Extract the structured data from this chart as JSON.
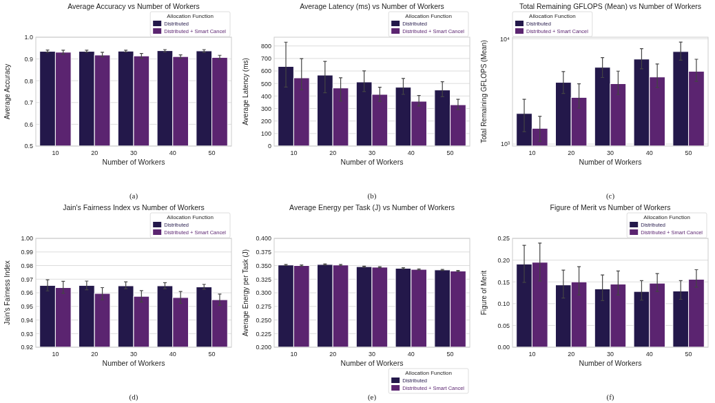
{
  "chart_data": [
    {
      "type": "bar",
      "title": "Average Accuracy vs Number of Workers",
      "xlabel": "Number of Workers",
      "ylabel": "Average Accuracy",
      "legend_title": "Allocation Function",
      "legend": "top right",
      "grid": "y",
      "annotations": [
        "(a)"
      ],
      "categories": [
        "10",
        "20",
        "30",
        "40",
        "50"
      ],
      "ylim": [
        0.5,
        1.0
      ],
      "yticks": [
        {
          "value": 0.5,
          "label": "0.5"
        },
        {
          "value": 0.6,
          "label": "0.6"
        },
        {
          "value": 0.7,
          "label": "0.7"
        },
        {
          "value": 0.8,
          "label": "0.8"
        },
        {
          "value": 0.9,
          "label": "0.9"
        },
        {
          "value": 1.0,
          "label": "1.0"
        }
      ],
      "series": [
        {
          "name": "Distributed",
          "color": "#23184a",
          "values": [
            0.935,
            0.935,
            0.936,
            0.938,
            0.937
          ],
          "errors": [
            [
              0.93,
              0.941
            ],
            [
              0.931,
              0.94
            ],
            [
              0.932,
              0.94
            ],
            [
              0.932,
              0.943
            ],
            [
              0.931,
              0.943
            ]
          ]
        },
        {
          "name": "Distributed + Smart Cancel",
          "color": "#5b2470",
          "values": [
            0.931,
            0.918,
            0.914,
            0.911,
            0.907
          ],
          "errors": [
            [
              0.922,
              0.94
            ],
            [
              0.91,
              0.931
            ],
            [
              0.903,
              0.925
            ],
            [
              0.903,
              0.919
            ],
            [
              0.898,
              0.917
            ]
          ]
        }
      ]
    },
    {
      "type": "bar",
      "title": "Average Latency (ms) vs Number of Workers",
      "xlabel": "Number of Workers",
      "ylabel": "Average Latency (ms)",
      "legend_title": "Allocation Function",
      "legend": "top right",
      "grid": "y",
      "annotations": [
        "(b)"
      ],
      "categories": [
        "10",
        "20",
        "30",
        "40",
        "50"
      ],
      "ylim": [
        0,
        870
      ],
      "yticks": [
        0,
        100,
        200,
        300,
        400,
        500,
        600,
        700,
        800
      ],
      "series": [
        {
          "name": "Distributed",
          "color": "#23184a",
          "values": [
            636,
            567,
            512,
            470,
            448
          ],
          "errors": [
            [
              471,
              830
            ],
            [
              426,
              677
            ],
            [
              436,
              601
            ],
            [
              413,
              540
            ],
            [
              394,
              514
            ]
          ]
        },
        {
          "name": "Distributed + Smart Cancel",
          "color": "#5b2470",
          "values": [
            545,
            464,
            413,
            358,
            330
          ],
          "errors": [
            [
              450,
              699
            ],
            [
              360,
              546
            ],
            [
              357,
              470
            ],
            [
              320,
              404
            ],
            [
              291,
              374
            ]
          ]
        }
      ]
    },
    {
      "type": "bar",
      "title": "Total Remaining GFLOPS (Mean) vs Number of Workers",
      "xlabel": "Number of Workers",
      "ylabel": "Total Remaining GFLOPS (Mean)",
      "legend_title": "Allocation Function",
      "legend": "top left",
      "grid": "y",
      "log": true,
      "annotations": [
        "(c)"
      ],
      "categories": [
        "10",
        "20",
        "30",
        "40",
        "50"
      ],
      "ylim": [
        957,
        10330
      ],
      "yticks": [
        {
          "value": 1000,
          "label": "10³"
        },
        {
          "value": 10000,
          "label": "10⁴"
        }
      ],
      "series": [
        {
          "name": "Distributed",
          "color": "#23184a",
          "values": [
            1950,
            3850,
            5350,
            6400,
            7550
          ],
          "errors": [
            [
              1310,
              2660
            ],
            [
              3020,
              4870
            ],
            [
              4280,
              6620
            ],
            [
              5180,
              8050
            ],
            [
              6250,
              9270
            ]
          ]
        },
        {
          "name": "Distributed + Smart Cancel",
          "color": "#5b2470",
          "values": [
            1410,
            2770,
            3740,
            4330,
            4900
          ],
          "errors": [
            [
              1060,
              1830
            ],
            [
              2190,
              3730
            ],
            [
              2950,
              4920
            ],
            [
              3430,
              5760
            ],
            [
              3930,
              6380
            ]
          ]
        }
      ]
    },
    {
      "type": "bar",
      "title": "Jain's Fairness Index vs Number of Workers",
      "xlabel": "Number of Workers",
      "ylabel": "Jain's Fairness Index",
      "legend_title": "Allocation Function",
      "legend": "top right",
      "grid": "y",
      "annotations": [
        "(d)"
      ],
      "categories": [
        "10",
        "20",
        "30",
        "40",
        "50"
      ],
      "ylim": [
        0.92,
        1.0
      ],
      "yticks": [
        {
          "value": 0.92,
          "label": "0.92"
        },
        {
          "value": 0.93,
          "label": "0.93"
        },
        {
          "value": 0.94,
          "label": "0.94"
        },
        {
          "value": 0.95,
          "label": "0.95"
        },
        {
          "value": 0.96,
          "label": "0.96"
        },
        {
          "value": 0.97,
          "label": "0.97"
        },
        {
          "value": 0.98,
          "label": "0.98"
        },
        {
          "value": 0.99,
          "label": "0.99"
        },
        {
          "value": 1.0,
          "label": "1.00"
        }
      ],
      "series": [
        {
          "name": "Distributed",
          "color": "#23184a",
          "values": [
            0.9654,
            0.9654,
            0.9651,
            0.9651,
            0.9643
          ],
          "errors": [
            [
              0.9614,
              0.9696
            ],
            [
              0.9622,
              0.9686
            ],
            [
              0.963,
              0.968
            ],
            [
              0.963,
              0.9674
            ],
            [
              0.9626,
              0.9662
            ]
          ]
        },
        {
          "name": "Distributed + Smart Cancel",
          "color": "#5b2470",
          "values": [
            0.9638,
            0.9595,
            0.9574,
            0.9565,
            0.9549
          ],
          "errors": [
            [
              0.9597,
              0.9684
            ],
            [
              0.9549,
              0.9638
            ],
            [
              0.9532,
              0.9616
            ],
            [
              0.9522,
              0.9609
            ],
            [
              0.9508,
              0.9591
            ]
          ]
        }
      ]
    },
    {
      "type": "bar",
      "title": "Average Energy per Task (J) vs Number of Workers",
      "xlabel": "Number of Workers",
      "ylabel": "Average Energy per Task (J)",
      "legend_title": "Allocation Function",
      "legend": "bottom right",
      "grid": "y",
      "annotations": [
        "(e)"
      ],
      "categories": [
        "10",
        "20",
        "30",
        "40",
        "50"
      ],
      "ylim": [
        0.2,
        0.4
      ],
      "yticks": [
        {
          "value": 0.2,
          "label": "0.200"
        },
        {
          "value": 0.225,
          "label": "0.225"
        },
        {
          "value": 0.25,
          "label": "0.250"
        },
        {
          "value": 0.275,
          "label": "0.275"
        },
        {
          "value": 0.3,
          "label": "0.300"
        },
        {
          "value": 0.325,
          "label": "0.325"
        },
        {
          "value": 0.35,
          "label": "0.350"
        },
        {
          "value": 0.375,
          "label": "0.375"
        },
        {
          "value": 0.4,
          "label": "0.400"
        }
      ],
      "series": [
        {
          "name": "Distributed",
          "color": "#23184a",
          "values": [
            0.351,
            0.352,
            0.348,
            0.345,
            0.342
          ],
          "errors": [
            0.001,
            0.001,
            0.001,
            0.001,
            0.001
          ]
        },
        {
          "name": "Distributed + Smart Cancel",
          "color": "#5b2470",
          "values": [
            0.35,
            0.351,
            0.347,
            0.343,
            0.34
          ],
          "errors": [
            0.001,
            0.001,
            0.001,
            0.001,
            0.001
          ]
        }
      ]
    },
    {
      "type": "bar",
      "title": "Figure of Merit vs Number of Workers",
      "xlabel": "Number of Workers",
      "ylabel": "Figure of Merit",
      "legend_title": "Allocation Function",
      "legend": "top right",
      "grid": "y",
      "annotations": [
        "(f)"
      ],
      "categories": [
        "10",
        "20",
        "30",
        "40",
        "50"
      ],
      "ylim": [
        0,
        0.25
      ],
      "yticks": [
        {
          "value": 0,
          "label": "0.00"
        },
        {
          "value": 0.05,
          "label": "0.05"
        },
        {
          "value": 0.1,
          "label": "0.10"
        },
        {
          "value": 0.15,
          "label": "0.15"
        },
        {
          "value": 0.2,
          "label": "0.20"
        },
        {
          "value": 0.25,
          "label": "0.25"
        }
      ],
      "series": [
        {
          "name": "Distributed",
          "color": "#23184a",
          "values": [
            0.191,
            0.143,
            0.134,
            0.128,
            0.129
          ],
          "errors": [
            [
              0.149,
              0.234
            ],
            [
              0.113,
              0.177
            ],
            [
              0.107,
              0.166
            ],
            [
              0.108,
              0.153
            ],
            [
              0.11,
              0.153
            ]
          ]
        },
        {
          "name": "Distributed + Smart Cancel",
          "color": "#5b2470",
          "values": [
            0.195,
            0.15,
            0.145,
            0.147,
            0.156
          ],
          "errors": [
            [
              0.152,
              0.239
            ],
            [
              0.12,
              0.185
            ],
            [
              0.12,
              0.175
            ],
            [
              0.128,
              0.169
            ],
            [
              0.138,
              0.178
            ]
          ]
        }
      ]
    }
  ]
}
